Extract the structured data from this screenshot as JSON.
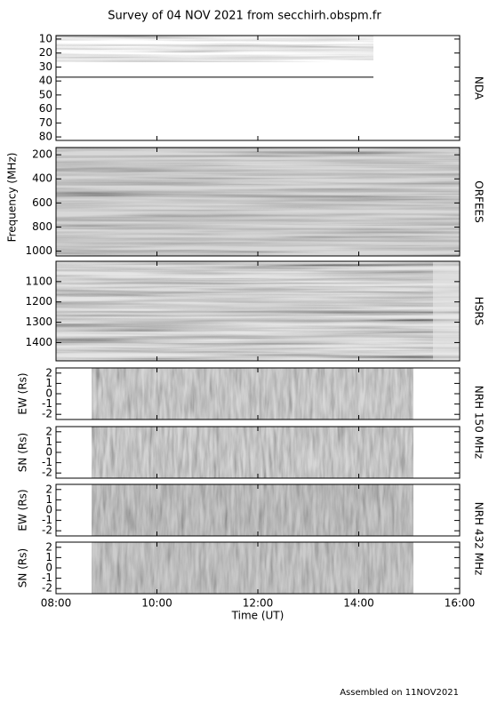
{
  "title": "Survey of 04 NOV 2021 from secchirh.obspm.fr",
  "frequency_label": "Frequency (MHz)",
  "nrh_labels": [
    "NRH 150 MHz",
    "NRH 432 MHz"
  ],
  "footer": "Assembled on 11NOV2021",
  "chart_data": [
    {
      "type": "heatmap",
      "instrument": "NDA",
      "ylim": [
        7.5,
        82.5
      ],
      "yticks": [
        10,
        20,
        30,
        40,
        50,
        60,
        70,
        80
      ],
      "y_inverted": true
    },
    {
      "type": "heatmap",
      "instrument": "ORFEES",
      "ylim": [
        140,
        1040
      ],
      "yticks": [
        200,
        400,
        600,
        800,
        1000
      ],
      "y_inverted": true
    },
    {
      "type": "heatmap",
      "instrument": "HSRS",
      "ylim": [
        1000,
        1490
      ],
      "yticks": [
        1100,
        1200,
        1300,
        1400
      ],
      "y_inverted": true
    },
    {
      "type": "heatmap",
      "ylabel": "EW (Rs)",
      "ylim": [
        -2.5,
        2.5
      ],
      "yticks": [
        -2,
        -1,
        0,
        1,
        2
      ],
      "y_inverted": false
    },
    {
      "type": "heatmap",
      "ylabel": "SN (Rs)",
      "ylim": [
        -2.5,
        2.5
      ],
      "yticks": [
        -2,
        -1,
        0,
        1,
        2
      ],
      "y_inverted": false
    },
    {
      "type": "heatmap",
      "ylabel": "EW (Rs)",
      "ylim": [
        -2.5,
        2.5
      ],
      "yticks": [
        -2,
        -1,
        0,
        1,
        2
      ],
      "y_inverted": false
    },
    {
      "type": "heatmap",
      "ylabel": "SN (Rs)",
      "ylim": [
        -2.5,
        2.5
      ],
      "yticks": [
        -2,
        -1,
        0,
        1,
        2
      ],
      "y_inverted": false,
      "xlabel": "Time (UT)",
      "xlim": [
        8,
        16
      ],
      "xticks": [
        {
          "value": 8,
          "label": "08:00"
        },
        {
          "value": 10,
          "label": "10:00"
        },
        {
          "value": 12,
          "label": "12:00"
        },
        {
          "value": 14,
          "label": "14:00"
        },
        {
          "value": 16,
          "label": "16:00"
        }
      ]
    }
  ]
}
